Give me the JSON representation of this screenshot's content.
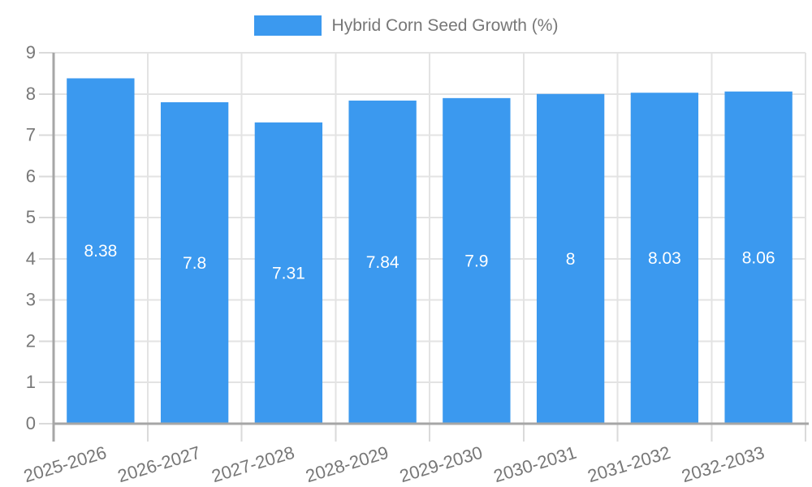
{
  "chart_data": {
    "type": "bar",
    "title": "Hybrid Corn Seed Growth (%)",
    "categories": [
      "2025-2026",
      "2026-2027",
      "2027-2028",
      "2028-2029",
      "2029-2030",
      "2030-2031",
      "2031-2032",
      "2032-2033"
    ],
    "series": [
      {
        "name": "Hybrid Corn Seed Growth (%)",
        "values": [
          8.38,
          7.8,
          7.31,
          7.84,
          7.9,
          8,
          8.03,
          8.06
        ],
        "value_labels": [
          "8.38",
          "7.8",
          "7.31",
          "7.84",
          "7.9",
          "8",
          "8.03",
          "8.06"
        ]
      }
    ],
    "xlabel": "",
    "ylabel": "",
    "ylim": [
      0,
      9
    ],
    "ytick_step": 1,
    "ytick_labels": [
      "0",
      "1",
      "2",
      "3",
      "4",
      "5",
      "6",
      "7",
      "8",
      "9"
    ],
    "grid": true,
    "legend_position": "top-center",
    "x_label_rotation_deg": -17,
    "style": {
      "bar_color": "#3b99ef",
      "grid_color": "#e3e3e3",
      "axis_color": "#a6a6a6",
      "tick_color": "#dadada",
      "label_color": "#777777",
      "value_label_color": "#ffffff",
      "background": "#ffffff"
    }
  }
}
